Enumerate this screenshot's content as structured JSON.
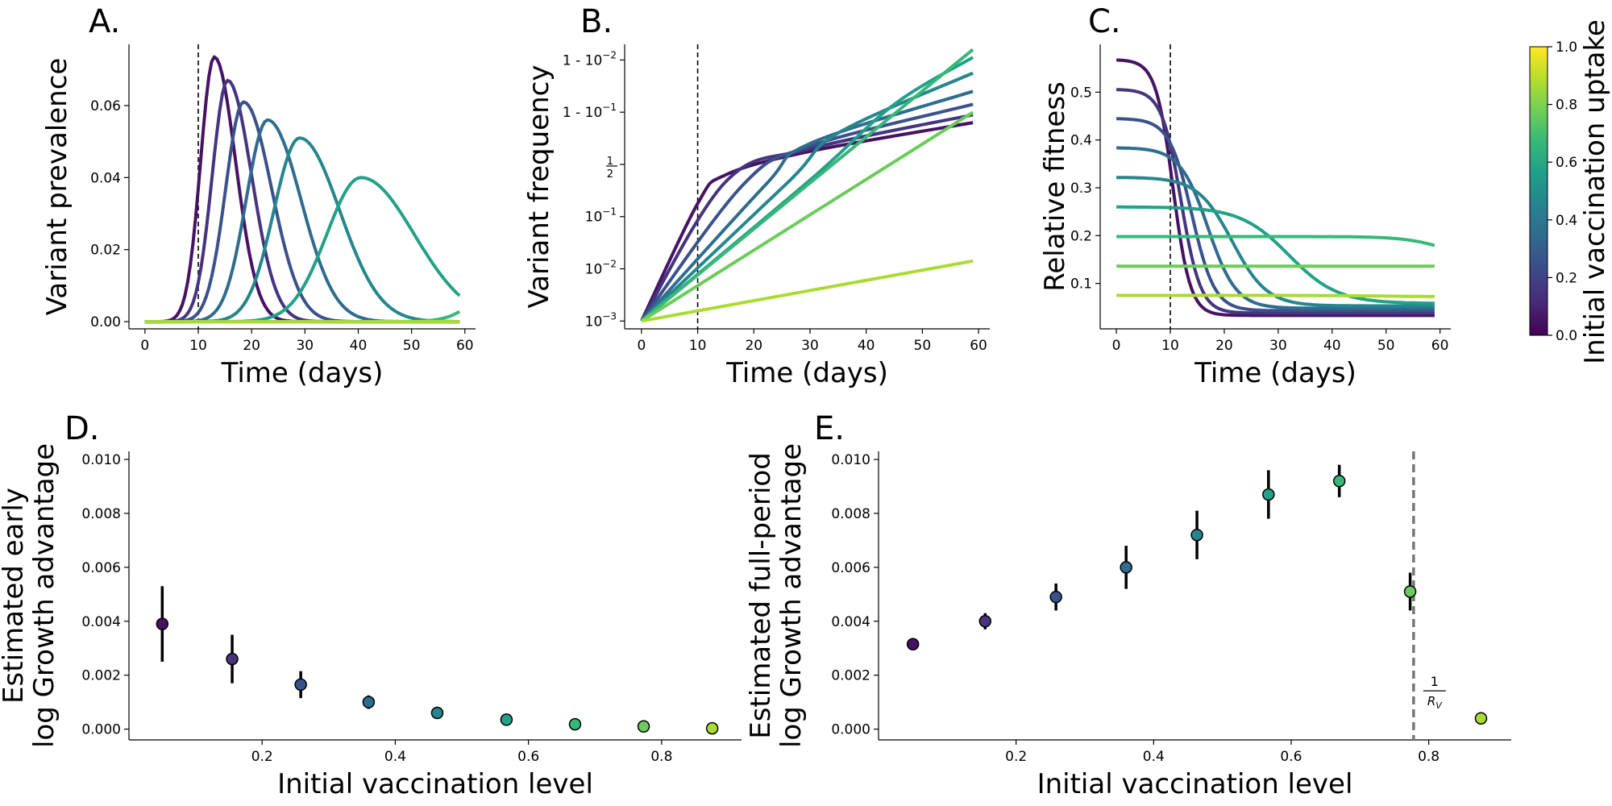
{
  "colormap": [
    "#440154",
    "#482878",
    "#3e4989",
    "#31688e",
    "#26828e",
    "#1f9e89",
    "#35b779",
    "#6ece58",
    "#b5de2b",
    "#fde725"
  ],
  "colorbar": {
    "label": "Initial vaccination uptake",
    "ticks": [
      "0.0",
      "0.2",
      "0.4",
      "0.6",
      "0.8",
      "1.0"
    ]
  },
  "chart_data": [
    {
      "panel": "A.",
      "type": "line",
      "xlabel": "Time (days)",
      "ylabel": "Variant prevalence",
      "xlim": [
        -3,
        62
      ],
      "ylim": [
        -0.002,
        0.077
      ],
      "xticks": [
        0,
        10,
        20,
        30,
        40,
        50,
        60
      ],
      "xtick_labels": [
        "0",
        "10",
        "20",
        "30",
        "40",
        "50",
        "60"
      ],
      "yticks": [
        0,
        0.02,
        0.04,
        0.06
      ],
      "ytick_labels": [
        "0.00",
        "0.02",
        "0.04",
        "0.06"
      ],
      "vline": 10,
      "series": [
        {
          "c": 0.05,
          "peak_t": 13,
          "peak": 0.0735,
          "w": 3.2
        },
        {
          "c": 0.15,
          "peak_t": 15.5,
          "peak": 0.067,
          "w": 3.6
        },
        {
          "c": 0.25,
          "peak_t": 18.5,
          "peak": 0.061,
          "w": 4.2
        },
        {
          "c": 0.35,
          "peak_t": 23,
          "peak": 0.056,
          "w": 5.0
        },
        {
          "c": 0.46,
          "peak_t": 29,
          "peak": 0.051,
          "w": 6.0
        },
        {
          "c": 0.57,
          "peak_t": 40.5,
          "peak": 0.04,
          "w": 8.0
        },
        {
          "c": 0.67,
          "peak_t": 72,
          "peak": 0.022,
          "w": 8.0
        },
        {
          "c": 0.77,
          "peak_t": 200,
          "peak": 0.0005,
          "w": 40
        },
        {
          "c": 0.87,
          "peak_t": 200,
          "peak": 0.0002,
          "w": 40
        }
      ]
    },
    {
      "panel": "B.",
      "type": "line",
      "xlabel": "Time (days)",
      "ylabel": "Variant frequency",
      "xlim": [
        -3,
        62
      ],
      "ylim": [
        -3.15,
        2.3
      ],
      "xticks": [
        0,
        10,
        20,
        30,
        40,
        50,
        60
      ],
      "xtick_labels": [
        "0",
        "10",
        "20",
        "30",
        "40",
        "50",
        "60"
      ],
      "yticks": [
        -3,
        -2,
        -1,
        0,
        1,
        2
      ],
      "ytick_labels": [
        "10^-3",
        "10^-2",
        "10^-1",
        "1/2",
        "1 - 10^-1",
        "1 - 10^-2"
      ],
      "vline": 10,
      "series": [
        {
          "c": 0.05,
          "points": [
            [
              0,
              -3
            ],
            [
              10,
              -0.75
            ],
            [
              15,
              -0.2
            ],
            [
              30,
              0.25
            ],
            [
              59,
              0.8
            ]
          ]
        },
        {
          "c": 0.15,
          "points": [
            [
              0,
              -3
            ],
            [
              15,
              -0.33
            ],
            [
              30,
              0.3
            ],
            [
              59,
              0.95
            ]
          ]
        },
        {
          "c": 0.25,
          "points": [
            [
              0,
              -3
            ],
            [
              18,
              -0.4
            ],
            [
              30,
              0.35
            ],
            [
              59,
              1.15
            ]
          ]
        },
        {
          "c": 0.35,
          "points": [
            [
              0,
              -3
            ],
            [
              22,
              -0.4
            ],
            [
              30,
              0.4
            ],
            [
              59,
              1.4
            ]
          ]
        },
        {
          "c": 0.46,
          "points": [
            [
              0,
              -3
            ],
            [
              26,
              -0.35
            ],
            [
              35,
              0.6
            ],
            [
              59,
              1.75
            ]
          ]
        },
        {
          "c": 0.57,
          "points": [
            [
              0,
              -3
            ],
            [
              30,
              -0.3
            ],
            [
              45,
              1.15
            ],
            [
              59,
              2.05
            ]
          ]
        },
        {
          "c": 0.67,
          "points": [
            [
              0,
              -3
            ],
            [
              59,
              2.2
            ]
          ]
        },
        {
          "c": 0.77,
          "points": [
            [
              0,
              -3
            ],
            [
              59,
              1.0
            ]
          ]
        },
        {
          "c": 0.87,
          "points": [
            [
              0,
              -3
            ],
            [
              59,
              -1.85
            ]
          ]
        }
      ]
    },
    {
      "panel": "C.",
      "type": "line",
      "xlabel": "Time (days)",
      "ylabel": "Relative fitness",
      "xlim": [
        -3,
        62
      ],
      "ylim": [
        0.005,
        0.6
      ],
      "xticks": [
        0,
        10,
        20,
        30,
        40,
        50,
        60
      ],
      "xtick_labels": [
        "0",
        "10",
        "20",
        "30",
        "40",
        "50",
        "60"
      ],
      "yticks": [
        0.1,
        0.2,
        0.3,
        0.4,
        0.5
      ],
      "ytick_labels": [
        "0.1",
        "0.2",
        "0.3",
        "0.4",
        "0.5"
      ],
      "vline": 10,
      "series": [
        {
          "c": 0.05,
          "start": 0.568,
          "end": 0.033,
          "t50": 10.5,
          "w": 1.6
        },
        {
          "c": 0.15,
          "start": 0.506,
          "end": 0.038,
          "t50": 12,
          "w": 1.8
        },
        {
          "c": 0.25,
          "start": 0.445,
          "end": 0.043,
          "t50": 14,
          "w": 2.1
        },
        {
          "c": 0.35,
          "start": 0.384,
          "end": 0.048,
          "t50": 17,
          "w": 2.6
        },
        {
          "c": 0.46,
          "start": 0.322,
          "end": 0.053,
          "t50": 21.5,
          "w": 3.2
        },
        {
          "c": 0.57,
          "start": 0.26,
          "end": 0.058,
          "t50": 32,
          "w": 4.5
        },
        {
          "c": 0.67,
          "start": 0.198,
          "end": 0.14,
          "t50": 62,
          "w": 4.0
        },
        {
          "c": 0.77,
          "start": 0.136,
          "end": 0.136,
          "t50": 60,
          "w": 4.0
        },
        {
          "c": 0.87,
          "start": 0.075,
          "end": 0.072,
          "t50": 50,
          "w": 6.0
        }
      ]
    },
    {
      "panel": "D.",
      "type": "scatter",
      "xlabel": "Initial vaccination level",
      "ylabel": [
        "Estimated early",
        "log Growth advantage"
      ],
      "xlim": [
        0,
        0.92
      ],
      "ylim": [
        -0.0004,
        0.0103
      ],
      "xticks": [
        0.2,
        0.4,
        0.6,
        0.8
      ],
      "xtick_labels": [
        "0.2",
        "0.4",
        "0.6",
        "0.8"
      ],
      "yticks": [
        0,
        0.002,
        0.004,
        0.006,
        0.008,
        0.01
      ],
      "ytick_labels": [
        "0.000",
        "0.002",
        "0.004",
        "0.006",
        "0.008",
        "0.010"
      ],
      "points": [
        {
          "x": 0.05,
          "y": 0.0039,
          "err": 0.0014,
          "c": 0.05
        },
        {
          "x": 0.155,
          "y": 0.0026,
          "err": 0.0009,
          "c": 0.15
        },
        {
          "x": 0.258,
          "y": 0.00165,
          "err": 0.0005,
          "c": 0.25
        },
        {
          "x": 0.36,
          "y": 0.001,
          "err": 0.00025,
          "c": 0.35
        },
        {
          "x": 0.463,
          "y": 0.0006,
          "err": 8e-05,
          "c": 0.46
        },
        {
          "x": 0.567,
          "y": 0.00035,
          "err": 0.0,
          "c": 0.57
        },
        {
          "x": 0.67,
          "y": 0.00018,
          "err": 0.0,
          "c": 0.67
        },
        {
          "x": 0.773,
          "y": 0.0001,
          "err": 0.0,
          "c": 0.77
        },
        {
          "x": 0.876,
          "y": 3e-05,
          "err": 0.0,
          "c": 0.87
        }
      ]
    },
    {
      "panel": "E.",
      "type": "scatter",
      "xlabel": "Initial vaccination level",
      "ylabel": [
        "Estimated full-period",
        "log Growth advantage"
      ],
      "xlim": [
        0,
        0.92
      ],
      "ylim": [
        -0.0004,
        0.0103
      ],
      "xticks": [
        0.2,
        0.4,
        0.6,
        0.8
      ],
      "xtick_labels": [
        "0.2",
        "0.4",
        "0.6",
        "0.8"
      ],
      "yticks": [
        0,
        0.002,
        0.004,
        0.006,
        0.008,
        0.01
      ],
      "ytick_labels": [
        "0.000",
        "0.002",
        "0.004",
        "0.006",
        "0.008",
        "0.010"
      ],
      "vline": 0.778,
      "vline_label": "1/R_v",
      "points": [
        {
          "x": 0.05,
          "y": 0.00315,
          "err": 0.0,
          "c": 0.05
        },
        {
          "x": 0.155,
          "y": 0.004,
          "err": 0.0003,
          "c": 0.15
        },
        {
          "x": 0.258,
          "y": 0.0049,
          "err": 0.0005,
          "c": 0.25
        },
        {
          "x": 0.36,
          "y": 0.006,
          "err": 0.0008,
          "c": 0.35
        },
        {
          "x": 0.463,
          "y": 0.0072,
          "err": 0.0009,
          "c": 0.46
        },
        {
          "x": 0.567,
          "y": 0.0087,
          "err": 0.0009,
          "c": 0.57
        },
        {
          "x": 0.67,
          "y": 0.0092,
          "err": 0.0006,
          "c": 0.67
        },
        {
          "x": 0.773,
          "y": 0.0051,
          "err": 0.0007,
          "c": 0.77
        },
        {
          "x": 0.876,
          "y": 0.0004,
          "err": 0.0,
          "c": 0.87
        }
      ]
    }
  ]
}
